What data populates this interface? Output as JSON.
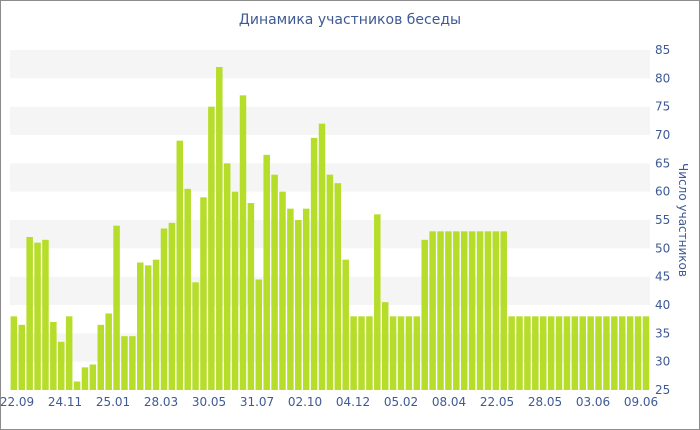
{
  "chart_data": {
    "type": "bar",
    "title": "Динамика участников беседы",
    "ylabel": "Число участников",
    "xlabel": "",
    "ylim": [
      25,
      85
    ],
    "ytick_step": 5,
    "grid": "horizontal bands",
    "bar_color": "#b5dd2a",
    "band_color": "#f5f5f5",
    "text_color": "#3e5a94",
    "x_tick_labels": [
      "22.09",
      "24.11",
      "25.01",
      "28.03",
      "30.05",
      "31.07",
      "02.10",
      "04.12",
      "05.02",
      "08.04",
      "22.05",
      "28.05",
      "03.06",
      "09.06"
    ],
    "values": [
      38,
      36.5,
      52,
      51,
      51.5,
      37,
      33.5,
      38,
      26.5,
      29,
      29.5,
      36.5,
      38.5,
      54,
      34.5,
      34.5,
      47.5,
      47,
      48,
      53.5,
      54.5,
      69,
      60.5,
      44,
      59,
      75,
      82,
      65,
      60,
      77,
      58,
      44.5,
      66.5,
      63,
      60,
      57,
      55,
      57,
      69.5,
      72,
      63,
      61.5,
      48,
      38,
      38,
      38,
      56,
      40.5,
      38,
      38,
      38,
      38,
      51.5,
      53,
      53,
      53,
      53,
      53,
      53,
      53,
      53,
      53,
      53,
      38,
      38,
      38,
      38,
      38,
      38,
      38,
      38,
      38,
      38,
      38,
      38,
      38,
      38,
      38,
      38,
      38,
      38
    ]
  }
}
